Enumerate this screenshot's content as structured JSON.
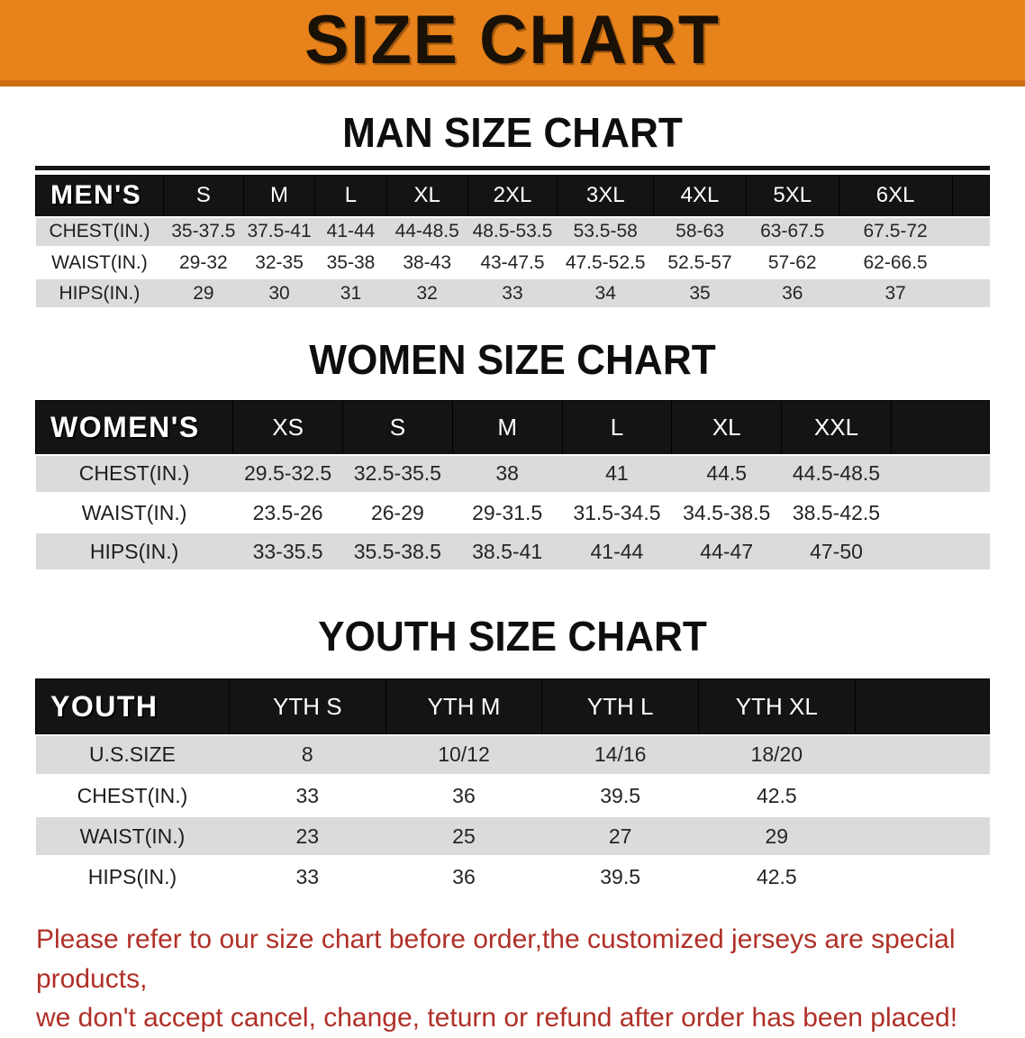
{
  "banner": {
    "title": "SIZE CHART",
    "bg_color": "#E8821A"
  },
  "sections": [
    {
      "heading": "MAN SIZE CHART",
      "table": {
        "group_label": "MEN'S",
        "columns": [
          "S",
          "M",
          "L",
          "XL",
          "2XL",
          "3XL",
          "4XL",
          "5XL",
          "6XL"
        ],
        "rows": [
          {
            "label": "CHEST(IN.)",
            "values": [
              "35-37.5",
              "37.5-41",
              "41-44",
              "44-48.5",
              "48.5-53.5",
              "53.5-58",
              "58-63",
              "63-67.5",
              "67.5-72"
            ]
          },
          {
            "label": "WAIST(IN.)",
            "values": [
              "29-32",
              "32-35",
              "35-38",
              "38-43",
              "43-47.5",
              "47.5-52.5",
              "52.5-57",
              "57-62",
              "62-66.5"
            ]
          },
          {
            "label": "HIPS(IN.)",
            "values": [
              "29",
              "30",
              "31",
              "32",
              "33",
              "34",
              "35",
              "36",
              "37"
            ]
          }
        ]
      }
    },
    {
      "heading": "WOMEN SIZE CHART",
      "table": {
        "group_label": "WOMEN'S",
        "columns": [
          "XS",
          "S",
          "M",
          "L",
          "XL",
          "XXL"
        ],
        "rows": [
          {
            "label": "CHEST(IN.)",
            "values": [
              "29.5-32.5",
              "32.5-35.5",
              "38",
              "41",
              "44.5",
              "44.5-48.5"
            ]
          },
          {
            "label": "WAIST(IN.)",
            "values": [
              "23.5-26",
              "26-29",
              "29-31.5",
              "31.5-34.5",
              "34.5-38.5",
              "38.5-42.5"
            ]
          },
          {
            "label": "HIPS(IN.)",
            "values": [
              "33-35.5",
              "35.5-38.5",
              "38.5-41",
              "41-44",
              "44-47",
              "47-50"
            ]
          }
        ]
      }
    },
    {
      "heading": "YOUTH SIZE CHART",
      "table": {
        "group_label": "YOUTH",
        "columns": [
          "YTH S",
          "YTH M",
          "YTH L",
          "YTH XL"
        ],
        "rows": [
          {
            "label": "U.S.SIZE",
            "values": [
              "8",
              "10/12",
              "14/16",
              "18/20"
            ]
          },
          {
            "label": "CHEST(IN.)",
            "values": [
              "33",
              "36",
              "39.5",
              "42.5"
            ]
          },
          {
            "label": "WAIST(IN.)",
            "values": [
              "23",
              "25",
              "27",
              "29"
            ]
          },
          {
            "label": "HIPS(IN.)",
            "values": [
              "33",
              "36",
              "39.5",
              "42.5"
            ]
          }
        ]
      }
    }
  ],
  "disclaimer": {
    "line1": "Please refer to our size chart before order,the customized jerseys are special products,",
    "line2": "we don't accept cancel, change, teturn or refund after order has been placed!",
    "color": "#AF3028"
  }
}
